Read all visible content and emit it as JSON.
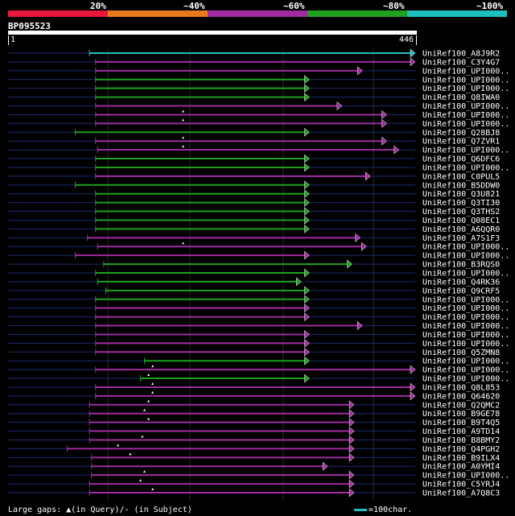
{
  "header": {
    "percent_labels": [
      "20%",
      "~40%",
      "~60%",
      "~80%",
      "~100%"
    ],
    "colors": [
      "#e8173c",
      "#e87a1c",
      "#a02ca0",
      "#1fa01f",
      "#1fbfbf"
    ],
    "query_id": "BP095523",
    "ruler_start": "1",
    "ruler_end": "446"
  },
  "hits": [
    {
      "label": "UniRef100_A8J9R2",
      "start": 0.2,
      "end": 1.0,
      "color": "#1fbfbf",
      "gap": null
    },
    {
      "label": "UniRef100_C3Y4G7",
      "start": 0.215,
      "end": 1.0,
      "color": "#a02ca0",
      "gap": null
    },
    {
      "label": "UniRef100_UPI000..",
      "start": 0.215,
      "end": 0.87,
      "color": "#a02ca0",
      "gap": null
    },
    {
      "label": "UniRef100_UPI000..",
      "start": 0.215,
      "end": 0.74,
      "color": "#1fa01f",
      "gap": null
    },
    {
      "label": "UniRef100_UPI000..",
      "start": 0.215,
      "end": 0.74,
      "color": "#1fa01f",
      "gap": null
    },
    {
      "label": "UniRef100_Q8IWA0",
      "start": 0.215,
      "end": 0.74,
      "color": "#1fa01f",
      "gap": null
    },
    {
      "label": "UniRef100_UPI000..",
      "start": 0.215,
      "end": 0.82,
      "color": "#a02ca0",
      "gap": null
    },
    {
      "label": "UniRef100_UPI000..",
      "start": 0.215,
      "end": 0.93,
      "color": "#a02ca0",
      "gap": 0.43
    },
    {
      "label": "UniRef100_UPI000..",
      "start": 0.215,
      "end": 0.93,
      "color": "#a02ca0",
      "gap": 0.43
    },
    {
      "label": "UniRef100_Q28BJ8",
      "start": 0.165,
      "end": 0.74,
      "color": "#1fa01f",
      "gap": null
    },
    {
      "label": "UniRef100_Q7ZVR1",
      "start": 0.215,
      "end": 0.93,
      "color": "#a02ca0",
      "gap": 0.43
    },
    {
      "label": "UniRef100_UPI000..",
      "start": 0.22,
      "end": 0.96,
      "color": "#a02ca0",
      "gap": 0.43
    },
    {
      "label": "UniRef100_Q6DFC6",
      "start": 0.215,
      "end": 0.74,
      "color": "#1fa01f",
      "gap": null
    },
    {
      "label": "UniRef100_UPI000..",
      "start": 0.215,
      "end": 0.74,
      "color": "#1fa01f",
      "gap": null
    },
    {
      "label": "UniRef100_C0PUL5",
      "start": 0.215,
      "end": 0.89,
      "color": "#a02ca0",
      "gap": null
    },
    {
      "label": "UniRef100_B5DDW0",
      "start": 0.165,
      "end": 0.74,
      "color": "#1fa01f",
      "gap": null
    },
    {
      "label": "UniRef100_Q3U821",
      "start": 0.215,
      "end": 0.74,
      "color": "#1fa01f",
      "gap": null
    },
    {
      "label": "UniRef100_Q3TI30",
      "start": 0.215,
      "end": 0.74,
      "color": "#1fa01f",
      "gap": null
    },
    {
      "label": "UniRef100_Q3THS2",
      "start": 0.215,
      "end": 0.74,
      "color": "#1fa01f",
      "gap": null
    },
    {
      "label": "UniRef100_Q08EC1",
      "start": 0.215,
      "end": 0.74,
      "color": "#1fa01f",
      "gap": null
    },
    {
      "label": "UniRef100_A6QQR0",
      "start": 0.215,
      "end": 0.74,
      "color": "#1fa01f",
      "gap": null
    },
    {
      "label": "UniRef100_A7S1F3",
      "start": 0.195,
      "end": 0.865,
      "color": "#a02ca0",
      "gap": null
    },
    {
      "label": "UniRef100_UPI000..",
      "start": 0.22,
      "end": 0.88,
      "color": "#a02ca0",
      "gap": 0.43
    },
    {
      "label": "UniRef100_UPI000..",
      "start": 0.165,
      "end": 0.74,
      "color": "#a02ca0",
      "gap": null
    },
    {
      "label": "UniRef100_B3RQS0",
      "start": 0.235,
      "end": 0.845,
      "color": "#1fa01f",
      "gap": null
    },
    {
      "label": "UniRef100_UPI000..",
      "start": 0.215,
      "end": 0.74,
      "color": "#1fa01f",
      "gap": null
    },
    {
      "label": "UniRef100_Q4RK36",
      "start": 0.22,
      "end": 0.72,
      "color": "#1fa01f",
      "gap": null
    },
    {
      "label": "UniRef100_Q9CRF5",
      "start": 0.24,
      "end": 0.74,
      "color": "#1fa01f",
      "gap": null
    },
    {
      "label": "UniRef100_UPI000..",
      "start": 0.215,
      "end": 0.74,
      "color": "#1fa01f",
      "gap": null
    },
    {
      "label": "UniRef100_UPI000..",
      "start": 0.215,
      "end": 0.74,
      "color": "#a02ca0",
      "gap": null
    },
    {
      "label": "UniRef100_UPI000..",
      "start": 0.215,
      "end": 0.74,
      "color": "#a02ca0",
      "gap": null
    },
    {
      "label": "UniRef100_UPI000..",
      "start": 0.215,
      "end": 0.87,
      "color": "#a02ca0",
      "gap": null
    },
    {
      "label": "UniRef100_UPI000..",
      "start": 0.215,
      "end": 0.74,
      "color": "#a02ca0",
      "gap": null
    },
    {
      "label": "UniRef100_UPI000..",
      "start": 0.215,
      "end": 0.74,
      "color": "#a02ca0",
      "gap": null
    },
    {
      "label": "UniRef100_Q5ZMN8",
      "start": 0.215,
      "end": 0.74,
      "color": "#a02ca0",
      "gap": null
    },
    {
      "label": "UniRef100_UPI000..",
      "start": 0.335,
      "end": 0.74,
      "color": "#1fa01f",
      "gap": null
    },
    {
      "label": "UniRef100_UPI000..",
      "start": 0.215,
      "end": 1.0,
      "color": "#a02ca0",
      "gap": 0.355
    },
    {
      "label": "UniRef100_UPI000..",
      "start": 0.325,
      "end": 0.74,
      "color": "#1fa01f",
      "gap": 0.345
    },
    {
      "label": "UniRef100_Q8L853",
      "start": 0.215,
      "end": 1.0,
      "color": "#a02ca0",
      "gap": 0.355
    },
    {
      "label": "UniRef100_Q64620",
      "start": 0.215,
      "end": 1.0,
      "color": "#a02ca0",
      "gap": 0.355
    },
    {
      "label": "UniRef100_Q2QMC2",
      "start": 0.2,
      "end": 0.85,
      "color": "#a02ca0",
      "gap": 0.345
    },
    {
      "label": "UniRef100_B9GE78",
      "start": 0.2,
      "end": 0.85,
      "color": "#a02ca0",
      "gap": 0.335
    },
    {
      "label": "UniRef100_B9T4Q5",
      "start": 0.2,
      "end": 0.85,
      "color": "#a02ca0",
      "gap": 0.345
    },
    {
      "label": "UniRef100_A9TD14",
      "start": 0.2,
      "end": 0.85,
      "color": "#a02ca0",
      "gap": null
    },
    {
      "label": "UniRef100_B8BMY2",
      "start": 0.2,
      "end": 0.85,
      "color": "#a02ca0",
      "gap": 0.33
    },
    {
      "label": "UniRef100_Q4PGH2",
      "start": 0.145,
      "end": 0.85,
      "color": "#a02ca0",
      "gap": 0.27
    },
    {
      "label": "UniRef100_B9ILX4",
      "start": 0.205,
      "end": 0.85,
      "color": "#a02ca0",
      "gap": 0.3
    },
    {
      "label": "UniRef100_A0YMI4",
      "start": 0.205,
      "end": 0.785,
      "color": "#a02ca0",
      "gap": null
    },
    {
      "label": "UniRef100_UPI000..",
      "start": 0.205,
      "end": 0.85,
      "color": "#a02ca0",
      "gap": 0.335
    },
    {
      "label": "UniRef100_C5YRJ4",
      "start": 0.2,
      "end": 0.85,
      "color": "#a02ca0",
      "gap": 0.325
    },
    {
      "label": "UniRef100_A7Q8C3",
      "start": 0.2,
      "end": 0.85,
      "color": "#a02ca0",
      "gap": 0.355
    }
  ],
  "footer": {
    "gaps_legend": "Large gaps: ▲(in Query)/- (in Subject)",
    "scale_legend": "=100char."
  }
}
